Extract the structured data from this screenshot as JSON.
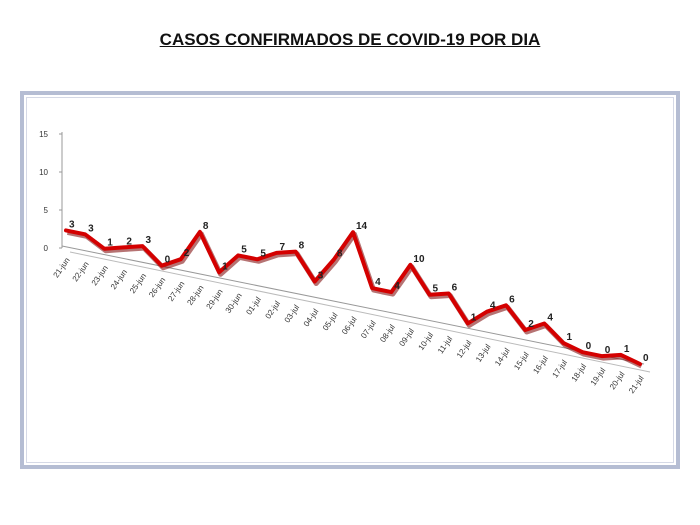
{
  "chart_data": {
    "type": "line",
    "title": "CASOS CONFIRMADOS DE COVID-19 POR DIA",
    "xlabel": "",
    "ylabel": "",
    "ylim": [
      0,
      15
    ],
    "yticks": [
      "0",
      "5",
      "10",
      "15"
    ],
    "categories": [
      "21-jun",
      "22-jun",
      "23-jun",
      "24-jun",
      "25-jun",
      "26-jun",
      "27-jun",
      "28-jun",
      "29-jun",
      "30-jun",
      "01-jul",
      "02-jul",
      "03-jul",
      "04-jul",
      "05-jul",
      "06-jul",
      "07-jul",
      "08-jul",
      "09-jul",
      "10-jul",
      "11-jul",
      "12-jul",
      "13-jul",
      "14-jul",
      "15-jul",
      "16-jul",
      "17-jul",
      "18-jul",
      "19-jul",
      "20-jul",
      "21-jul"
    ],
    "values": [
      3,
      3,
      1,
      2,
      3,
      0,
      2,
      8,
      1,
      5,
      5,
      7,
      8,
      3,
      8,
      14,
      4,
      4,
      10,
      5,
      6,
      1,
      4,
      6,
      2,
      4,
      1,
      0,
      0,
      1,
      0
    ],
    "line_color": "#d40000",
    "grid": false,
    "legend": "none"
  }
}
